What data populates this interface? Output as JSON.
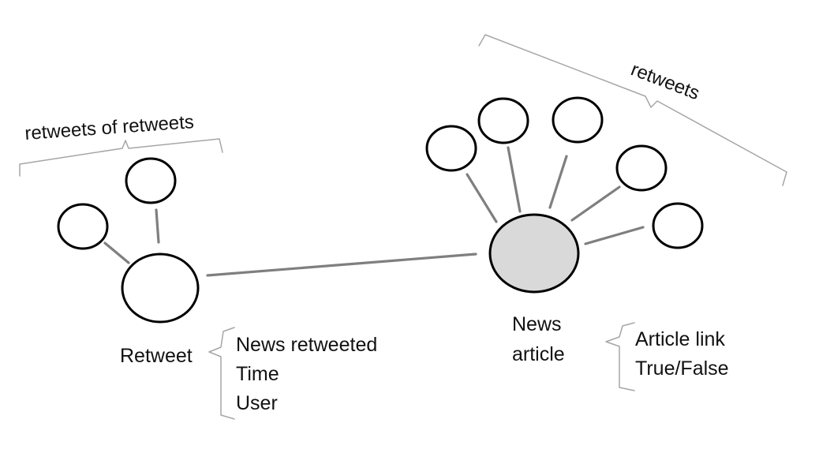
{
  "labels": {
    "retweets_of_retweets": "retweets of retweets",
    "retweets": "retweets",
    "retweet_node": "Retweet",
    "news_article_line1": "News",
    "news_article_line2": "article"
  },
  "retweet_attributes": [
    "News retweeted",
    "Time",
    "User"
  ],
  "news_attributes": [
    "Article link",
    "True/False"
  ],
  "colors": {
    "edge": "#7f7f7f",
    "news_node_fill": "#d9d9d9",
    "node_stroke": "#000000",
    "brace": "#a6a6a6"
  }
}
